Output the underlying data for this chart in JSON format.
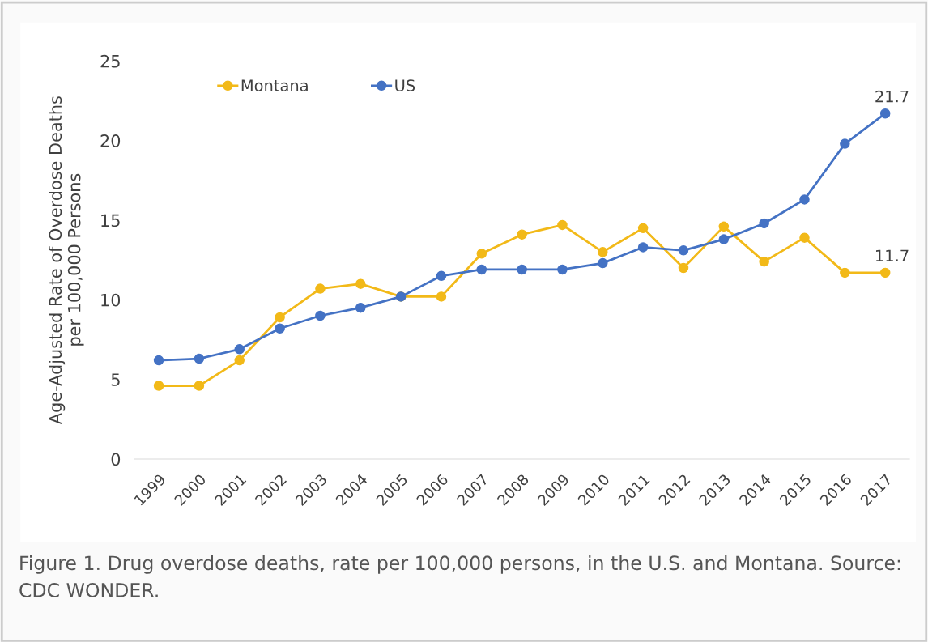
{
  "chart_data": {
    "type": "line",
    "categories": [
      "1999",
      "2000",
      "2001",
      "2002",
      "2003",
      "2004",
      "2005",
      "2006",
      "2007",
      "2008",
      "2009",
      "2010",
      "2011",
      "2012",
      "2013",
      "2014",
      "2015",
      "2016",
      "2017"
    ],
    "series": [
      {
        "name": "Montana",
        "color": "#f2b918",
        "values": [
          4.6,
          4.6,
          6.2,
          8.9,
          10.7,
          11.0,
          10.2,
          10.2,
          12.9,
          14.1,
          14.7,
          13.0,
          14.5,
          12.0,
          14.6,
          12.4,
          13.9,
          11.7,
          11.7
        ]
      },
      {
        "name": "US",
        "color": "#4472c4",
        "values": [
          6.2,
          6.3,
          6.9,
          8.2,
          9.0,
          9.5,
          10.2,
          11.5,
          11.9,
          11.9,
          11.9,
          12.3,
          13.3,
          13.1,
          13.8,
          14.8,
          16.3,
          19.8,
          21.7
        ]
      }
    ],
    "ylabel": "Age-Adjusted Rate of Overdose Deaths\nper 100,000 Persons",
    "ylim": [
      0,
      25
    ],
    "yticks": [
      0,
      5,
      10,
      15,
      20,
      25
    ],
    "grid": false,
    "legend": "top left",
    "marker": "circle",
    "line_style": "solid",
    "annotations": [
      {
        "text": "21.7",
        "x": "2017",
        "y": 21.7
      },
      {
        "text": "11.7",
        "x": "2017",
        "y": 11.7
      },
      "Figure 1. Drug overdose deaths, rate per 100,000 persons, in the U.S. and Montana. Source: CDC WONDER."
    ]
  }
}
